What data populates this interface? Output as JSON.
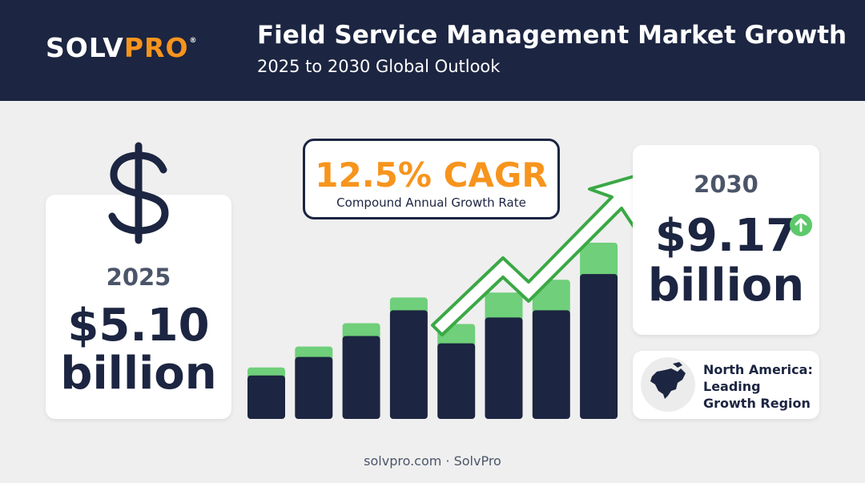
{
  "header": {
    "logo": {
      "part1": "SOLV",
      "part2": "PRO",
      "mark": "®"
    },
    "title": "Field Service Management Market Growth",
    "subtitle": "2025 to 2030 Global Outlook"
  },
  "left_card": {
    "icon": "dollar-sign-icon",
    "year": "2025",
    "amount": "$5.10",
    "unit": "billion"
  },
  "cagr": {
    "value": "12.5% CAGR",
    "label": "Compound Annual Growth Rate"
  },
  "right_card": {
    "year": "2030",
    "amount": "$9.17",
    "unit": "billion",
    "badge_icon": "arrow-up-icon"
  },
  "region": {
    "icon": "north-america-map-icon",
    "text": "North America: Leading Growth Region"
  },
  "footer": "solvpro.com · SolvPro",
  "colors": {
    "navy": "#1c2541",
    "orange": "#f7941d",
    "green": "#5cc96a",
    "bar_top": "#6fcf7a",
    "arrow": "#3aa845"
  },
  "chart_data": {
    "type": "bar",
    "stacked": true,
    "title": "",
    "xlabel": "",
    "ylabel": "",
    "axes_visible": false,
    "grid": false,
    "ylim": [
      0,
      220
    ],
    "series": [
      {
        "values": [
          54,
          77,
          103,
          135,
          94,
          126,
          135,
          180
        ]
      },
      {
        "values": [
          10,
          13,
          16,
          16,
          24,
          31,
          38,
          39
        ]
      }
    ],
    "trend_arrow": "up"
  }
}
